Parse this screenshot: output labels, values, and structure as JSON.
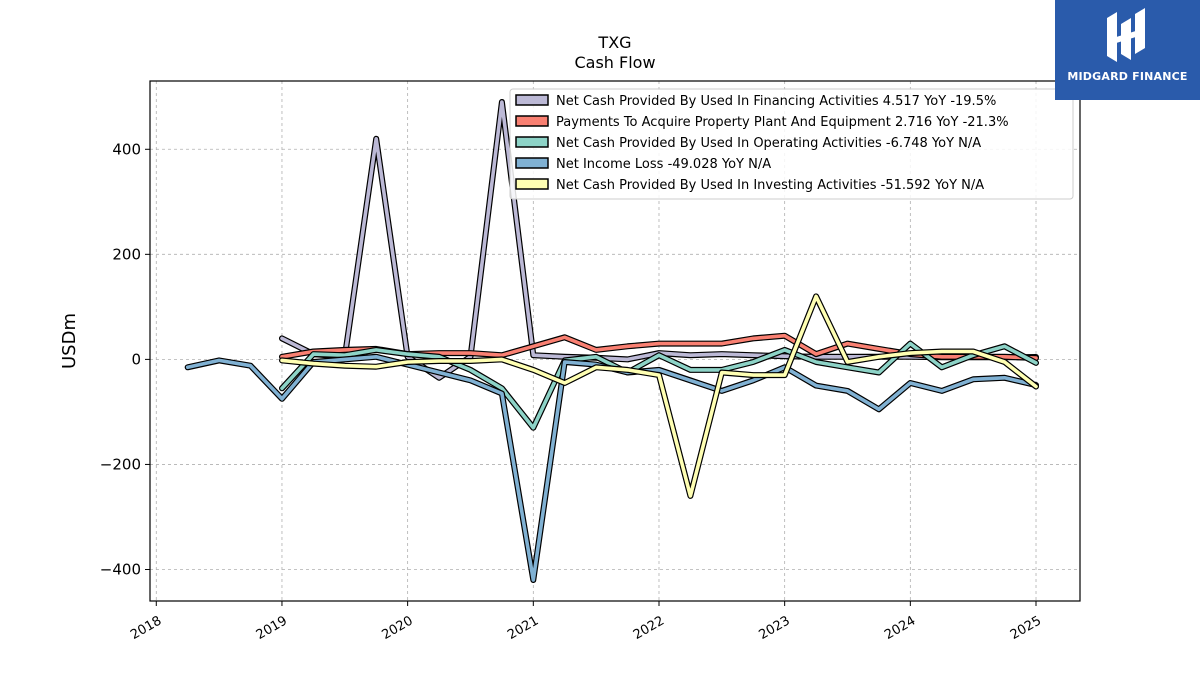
{
  "logo": {
    "text": "MIDGARD FINANCE"
  },
  "chart_data": {
    "type": "line",
    "title": "TXG",
    "subtitle": "Cash Flow",
    "ylabel": "USDm",
    "xlabel": "",
    "xlim": [
      2017.95,
      2025.35
    ],
    "ylim": [
      -460,
      530
    ],
    "yticks": [
      -400,
      -200,
      0,
      200,
      400
    ],
    "ytick_labels": [
      "−400",
      "−200",
      "0",
      "200",
      "400"
    ],
    "xticks": [
      2018,
      2019,
      2020,
      2021,
      2022,
      2023,
      2024,
      2025
    ],
    "xtick_labels": [
      "2018",
      "2019",
      "2020",
      "2021",
      "2022",
      "2023",
      "2024",
      "2025"
    ],
    "grid": true,
    "legend_position": "top-right",
    "series": [
      {
        "name": "Net Cash Provided By Used In Financing Activities",
        "legend_label": "Net Cash Provided By Used In Financing Activities  4.517 YoY -19.5%",
        "color": "#bcb9d6",
        "x": [
          2019.0,
          2019.25,
          2019.5,
          2019.75,
          2020.0,
          2020.25,
          2020.5,
          2020.75,
          2021.0,
          2021.25,
          2021.5,
          2021.75,
          2022.0,
          2022.25,
          2022.5,
          2022.75,
          2023.0,
          2023.25,
          2023.5,
          2023.75,
          2024.0,
          2024.25,
          2024.5,
          2024.75,
          2025.0
        ],
        "y": [
          40,
          10,
          5,
          420,
          5,
          -35,
          5,
          490,
          8,
          5,
          3,
          0,
          12,
          8,
          10,
          8,
          6,
          5,
          5,
          5,
          5,
          4,
          4,
          4,
          4.517
        ]
      },
      {
        "name": "Payments To Acquire Property Plant And Equipment",
        "legend_label": "Payments To Acquire Property Plant And Equipment  2.716 YoY -21.3%",
        "color": "#f98072",
        "x": [
          2019.0,
          2019.25,
          2019.5,
          2019.75,
          2020.0,
          2020.25,
          2020.5,
          2020.75,
          2021.0,
          2021.25,
          2021.5,
          2021.75,
          2022.0,
          2022.25,
          2022.5,
          2022.75,
          2023.0,
          2023.25,
          2023.5,
          2023.75,
          2024.0,
          2024.25,
          2024.5,
          2024.75,
          2025.0
        ],
        "y": [
          5,
          15,
          18,
          20,
          10,
          12,
          12,
          8,
          25,
          42,
          18,
          25,
          30,
          30,
          30,
          40,
          45,
          10,
          30,
          20,
          10,
          5,
          5,
          5,
          2.716
        ]
      },
      {
        "name": "Net Cash Provided By Used In Operating Activities",
        "legend_label": "Net Cash Provided By Used In Operating Activities  -6.748 YoY N/A",
        "color": "#8dd3c7",
        "x": [
          2019.0,
          2019.25,
          2019.5,
          2019.75,
          2020.0,
          2020.25,
          2020.5,
          2020.75,
          2021.0,
          2021.25,
          2021.5,
          2021.75,
          2022.0,
          2022.25,
          2022.5,
          2022.75,
          2023.0,
          2023.25,
          2023.5,
          2023.75,
          2024.0,
          2024.25,
          2024.5,
          2024.75,
          2025.0
        ],
        "y": [
          -55,
          10,
          8,
          18,
          10,
          5,
          -20,
          -55,
          -130,
          -2,
          5,
          -25,
          8,
          -20,
          -20,
          -5,
          18,
          -5,
          -15,
          -25,
          30,
          -15,
          8,
          25,
          -6.748
        ]
      },
      {
        "name": "Net Income Loss",
        "legend_label": "Net Income Loss  -49.028 YoY N/A",
        "color": "#80b1d3",
        "x": [
          2018.25,
          2018.5,
          2018.75,
          2019.0,
          2019.25,
          2019.5,
          2019.75,
          2020.0,
          2020.25,
          2020.5,
          2020.75,
          2021.0,
          2021.25,
          2021.5,
          2021.75,
          2022.0,
          2022.25,
          2022.5,
          2022.75,
          2023.0,
          2023.25,
          2023.5,
          2023.75,
          2024.0,
          2024.25,
          2024.5,
          2024.75,
          2025.0
        ],
        "y": [
          -15,
          -2,
          -12,
          -75,
          -5,
          0,
          5,
          -10,
          -25,
          -40,
          -65,
          -420,
          -5,
          -10,
          -25,
          -20,
          -40,
          -60,
          -40,
          -15,
          -50,
          -60,
          -95,
          -45,
          -60,
          -38,
          -35,
          -49.028
        ]
      },
      {
        "name": "Net Cash Provided By Used In Investing Activities",
        "legend_label": "Net Cash Provided By Used In Investing Activities  -51.592 YoY N/A",
        "color": "#ffffb3",
        "x": [
          2019.0,
          2019.25,
          2019.5,
          2019.75,
          2020.0,
          2020.25,
          2020.5,
          2020.75,
          2021.0,
          2021.25,
          2021.5,
          2021.75,
          2022.0,
          2022.25,
          2022.5,
          2022.75,
          2023.0,
          2023.25,
          2023.5,
          2023.75,
          2024.0,
          2024.25,
          2024.5,
          2024.75,
          2025.0
        ],
        "y": [
          -2,
          -8,
          -12,
          -14,
          -5,
          -3,
          -3,
          0,
          -20,
          -45,
          -15,
          -20,
          -30,
          -260,
          -25,
          -30,
          -30,
          120,
          -5,
          5,
          12,
          15,
          15,
          -5,
          -51.592
        ]
      }
    ]
  }
}
